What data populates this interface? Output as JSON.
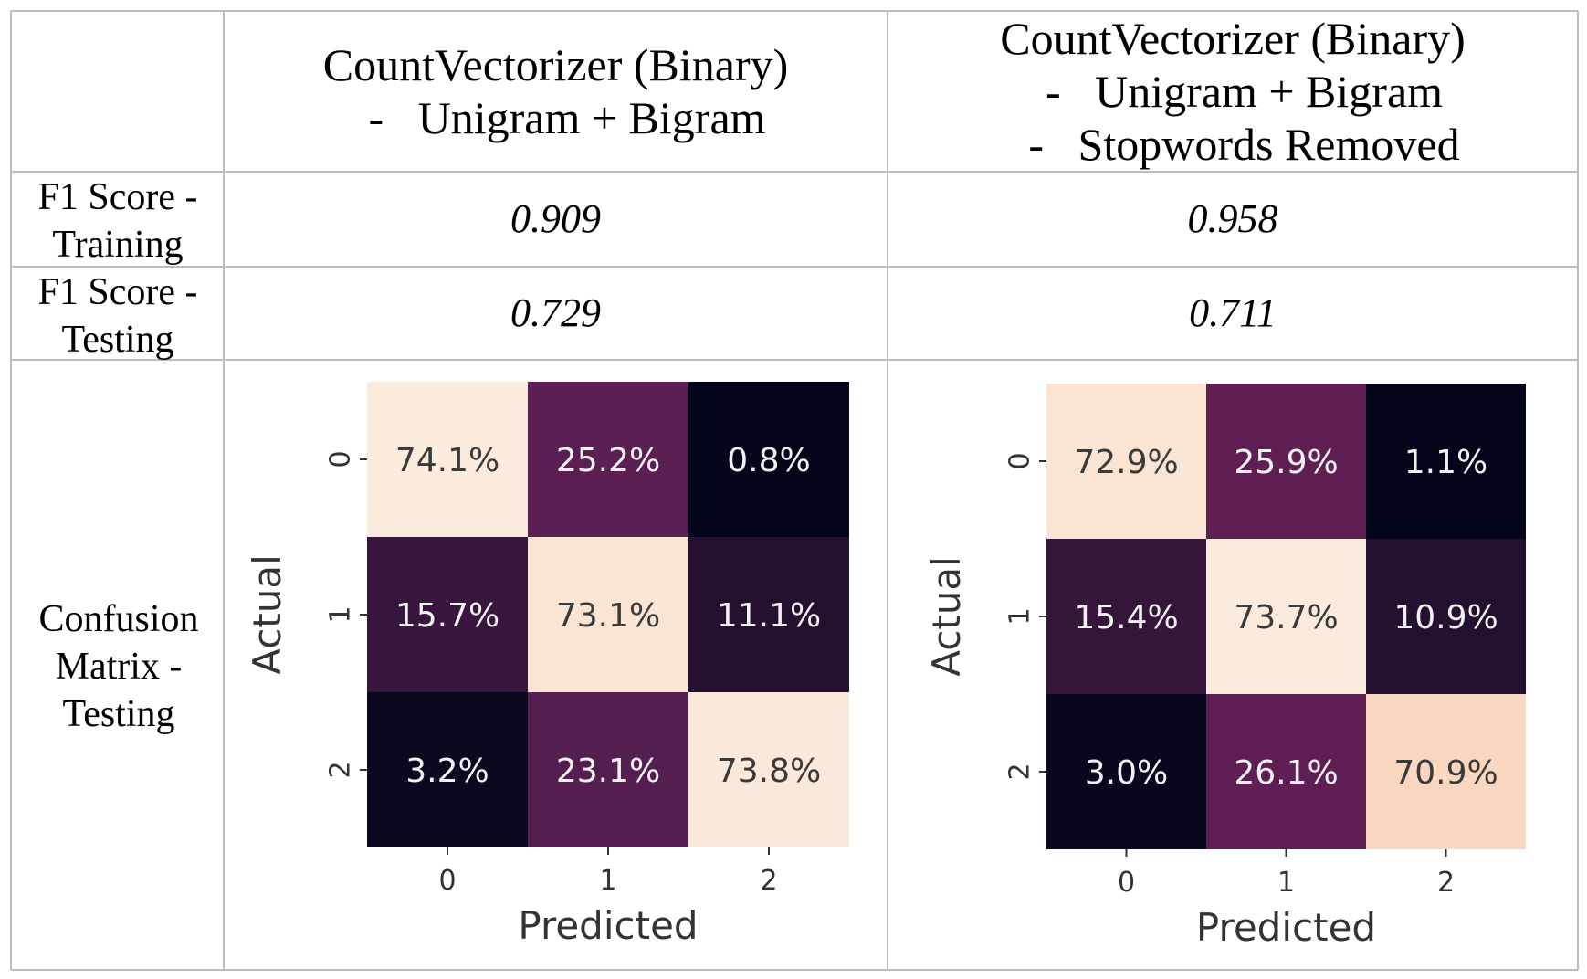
{
  "table": {
    "col_headers": [
      "",
      "CountVectorizer (Binary)\n  -   Unigram + Bigram",
      "CountVectorizer (Binary)\n  -   Unigram + Bigram\n  -   Stopwords Removed"
    ],
    "rows": [
      {
        "label": "F1 Score - Training",
        "values": [
          "0.909",
          "0.958"
        ]
      },
      {
        "label": "F1 Score - Testing",
        "values": [
          "0.729",
          "0.711"
        ]
      },
      {
        "label": "Confusion Matrix - Testing"
      }
    ]
  },
  "chart_data": [
    {
      "type": "heatmap",
      "title": "",
      "xlabel": "Predicted",
      "ylabel": "Actual",
      "x_categories": [
        "0",
        "1",
        "2"
      ],
      "y_categories": [
        "0",
        "1",
        "2"
      ],
      "values": [
        [
          74.1,
          25.2,
          0.8
        ],
        [
          15.7,
          73.1,
          11.1
        ],
        [
          3.2,
          23.1,
          73.8
        ]
      ],
      "cell_labels": [
        [
          "74.1%",
          "25.2%",
          "0.8%"
        ],
        [
          "15.7%",
          "73.1%",
          "11.1%"
        ],
        [
          "3.2%",
          "23.1%",
          "73.8%"
        ]
      ],
      "colorbar": false
    },
    {
      "type": "heatmap",
      "title": "",
      "xlabel": "Predicted",
      "ylabel": "Actual",
      "x_categories": [
        "0",
        "1",
        "2"
      ],
      "y_categories": [
        "0",
        "1",
        "2"
      ],
      "values": [
        [
          72.9,
          25.9,
          1.1
        ],
        [
          15.4,
          73.7,
          10.9
        ],
        [
          3.0,
          26.1,
          70.9
        ]
      ],
      "cell_labels": [
        [
          "72.9%",
          "25.9%",
          "1.1%"
        ],
        [
          "15.4%",
          "73.7%",
          "10.9%"
        ],
        [
          "3.0%",
          "26.1%",
          "70.9%"
        ]
      ],
      "colorbar": false
    }
  ]
}
